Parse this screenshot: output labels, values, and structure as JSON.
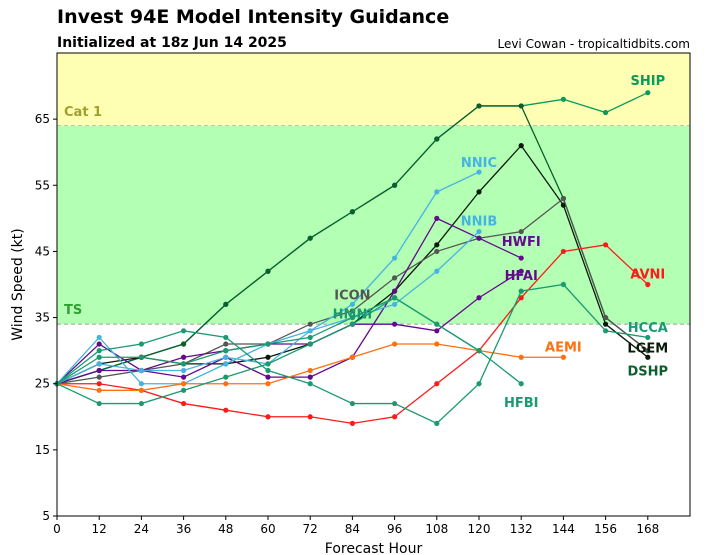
{
  "chart_data": {
    "type": "line",
    "title": "Invest 94E Model Intensity Guidance",
    "subtitle": "Initialized at 18z Jun 14 2025",
    "credit": "Levi Cowan - tropicaltidbits.com",
    "xlabel": "Forecast Hour",
    "ylabel": "Wind Speed (kt)",
    "xlim": [
      0,
      180
    ],
    "ylim": [
      5,
      75
    ],
    "xticks": [
      0,
      12,
      24,
      36,
      48,
      60,
      72,
      84,
      96,
      108,
      120,
      132,
      144,
      156,
      168
    ],
    "yticks": [
      5,
      15,
      25,
      35,
      45,
      55,
      65
    ],
    "bands": [
      {
        "label": "Cat 1",
        "from": 64,
        "to": 75,
        "color": "#ffffb3",
        "label_color": "#a0a030"
      },
      {
        "label": "TS",
        "from": 34,
        "to": 64,
        "color": "#b3ffb3",
        "label_color": "#30a030"
      }
    ],
    "series": [
      {
        "name": "SHIP",
        "color": "#0a9a5a",
        "values": [
          25,
          27,
          29,
          31,
          37,
          42,
          47,
          51,
          55,
          62,
          67,
          67,
          68,
          66,
          69
        ]
      },
      {
        "name": "DSHP",
        "color": "#0b5e2e",
        "values": [
          25,
          27,
          29,
          31,
          37,
          42,
          47,
          51,
          55,
          62,
          67,
          67,
          53,
          35,
          30
        ]
      },
      {
        "name": "LGEM",
        "color": "#0a1a0a",
        "values": [
          25,
          28,
          29,
          28,
          28,
          29,
          31,
          34,
          39,
          46,
          54,
          61,
          52,
          34,
          29
        ]
      },
      {
        "name": "ICON",
        "color": "#555555",
        "values": [
          25,
          26,
          27,
          28,
          31,
          31,
          34,
          36,
          41,
          45,
          47,
          48,
          53,
          35,
          30
        ]
      },
      {
        "name": "HWFI",
        "color": "#640a8c",
        "values": [
          25,
          31,
          27,
          26,
          29,
          26,
          26,
          29,
          39,
          50,
          47,
          44
        ]
      },
      {
        "name": "HFAI",
        "color": "#640a8c",
        "values": [
          25,
          27,
          27,
          29,
          30,
          31,
          31,
          34,
          34,
          33,
          38,
          42
        ]
      },
      {
        "name": "NNIC",
        "color": "#45b4e0",
        "values": [
          25,
          32,
          25,
          25,
          28,
          31,
          33,
          37,
          44,
          54,
          57
        ]
      },
      {
        "name": "NNIB",
        "color": "#45b4e0",
        "values": [
          25,
          28,
          27,
          27,
          29,
          28,
          33,
          35,
          37,
          42,
          48
        ]
      },
      {
        "name": "AVNI",
        "color": "#ff1a1a",
        "values": [
          25,
          25,
          24,
          22,
          21,
          20,
          20,
          19,
          20,
          25,
          30,
          38,
          45,
          46,
          40
        ]
      },
      {
        "name": "AEMI",
        "color": "#ff7010",
        "values": [
          25,
          24,
          24,
          25,
          25,
          25,
          27,
          29,
          31,
          31,
          30,
          29,
          29
        ]
      },
      {
        "name": "HMNI",
        "color": "#1a9a70",
        "values": [
          25,
          29,
          29,
          28,
          30,
          31,
          32,
          35,
          38,
          34,
          30
        ]
      },
      {
        "name": "HCCA",
        "color": "#1a9a70",
        "values": [
          25,
          30,
          31,
          33,
          32,
          27,
          25,
          22,
          22,
          19,
          25,
          39,
          40,
          33,
          32
        ]
      },
      {
        "name": "HFBI",
        "color": "#1a9a70",
        "values": [
          25,
          22,
          22,
          24,
          26,
          28,
          31,
          34,
          38,
          34,
          30,
          25
        ]
      }
    ]
  }
}
